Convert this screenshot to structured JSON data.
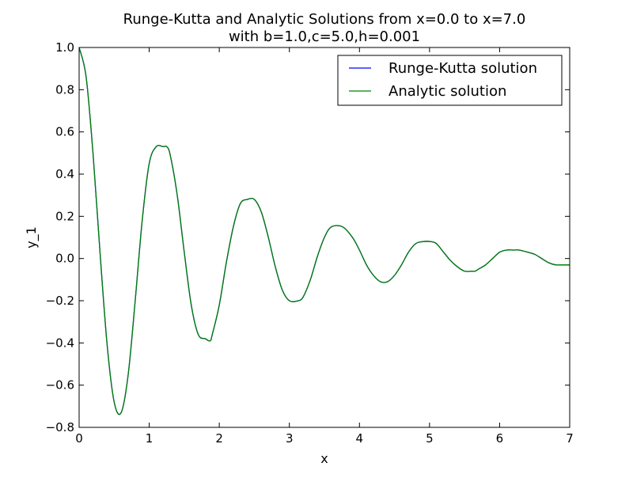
{
  "chart_data": {
    "type": "line",
    "title": "Runge-Kutta and Analytic Solutions from x=0.0 to x=7.0",
    "subtitle": "with b=1.0,c=5.0,h=0.001",
    "xlabel": "x",
    "ylabel": "y_1",
    "xlim": [
      0,
      7
    ],
    "ylim": [
      -0.8,
      1.0
    ],
    "xticks": [
      "0",
      "1",
      "2",
      "3",
      "4",
      "5",
      "6",
      "7"
    ],
    "yticks": [
      "−0.8",
      "−0.6",
      "−0.4",
      "−0.2",
      "0.0",
      "0.2",
      "0.4",
      "0.6",
      "0.8",
      "1.0"
    ],
    "xtick_values": [
      0,
      1,
      2,
      3,
      4,
      5,
      6,
      7
    ],
    "ytick_values": [
      -0.8,
      -0.6,
      -0.4,
      -0.2,
      0.0,
      0.2,
      0.4,
      0.6,
      0.8,
      1.0
    ],
    "grid": false,
    "legend_position": "top-right",
    "series": [
      {
        "name": "Runge-Kutta solution",
        "color": "#0000ff",
        "x": [
          0,
          0.1,
          0.2,
          0.3,
          0.4,
          0.5,
          0.6,
          0.7,
          0.8,
          0.9,
          1.0,
          1.1,
          1.2,
          1.25,
          1.3,
          1.4,
          1.5,
          1.6,
          1.7,
          1.8,
          1.87,
          1.9,
          2.0,
          2.1,
          2.2,
          2.3,
          2.4,
          2.5,
          2.6,
          2.7,
          2.8,
          2.9,
          3.0,
          3.13,
          3.2,
          3.3,
          3.4,
          3.5,
          3.6,
          3.76,
          3.9,
          4.0,
          4.1,
          4.2,
          4.3,
          4.4,
          4.5,
          4.6,
          4.7,
          4.8,
          4.9,
          5.02,
          5.1,
          5.2,
          5.3,
          5.4,
          5.5,
          5.6,
          5.65,
          5.7,
          5.8,
          5.9,
          6.0,
          6.1,
          6.2,
          6.28,
          6.4,
          6.5,
          6.6,
          6.7,
          6.8,
          6.9,
          7.0
        ],
        "y": [
          1.0,
          0.86,
          0.49,
          0.02,
          -0.41,
          -0.68,
          -0.73,
          -0.55,
          -0.2,
          0.18,
          0.45,
          0.53,
          0.53,
          0.53,
          0.49,
          0.3,
          0.03,
          -0.22,
          -0.36,
          -0.38,
          -0.39,
          -0.36,
          -0.22,
          -0.02,
          0.15,
          0.26,
          0.28,
          0.28,
          0.22,
          0.1,
          -0.04,
          -0.15,
          -0.2,
          -0.2,
          -0.18,
          -0.1,
          0.01,
          0.1,
          0.15,
          0.15,
          0.1,
          0.04,
          -0.03,
          -0.08,
          -0.11,
          -0.11,
          -0.08,
          -0.03,
          0.03,
          0.07,
          0.08,
          0.08,
          0.07,
          0.03,
          -0.01,
          -0.04,
          -0.06,
          -0.06,
          -0.06,
          -0.05,
          -0.03,
          0.0,
          0.03,
          0.04,
          0.04,
          0.04,
          0.03,
          0.02,
          0.0,
          -0.02,
          -0.03,
          -0.03,
          -0.03
        ]
      },
      {
        "name": "Analytic solution",
        "color": "#008000",
        "x": [
          0,
          0.1,
          0.2,
          0.3,
          0.4,
          0.5,
          0.6,
          0.7,
          0.8,
          0.9,
          1.0,
          1.1,
          1.2,
          1.25,
          1.3,
          1.4,
          1.5,
          1.6,
          1.7,
          1.8,
          1.87,
          1.9,
          2.0,
          2.1,
          2.2,
          2.3,
          2.4,
          2.5,
          2.6,
          2.7,
          2.8,
          2.9,
          3.0,
          3.13,
          3.2,
          3.3,
          3.4,
          3.5,
          3.6,
          3.76,
          3.9,
          4.0,
          4.1,
          4.2,
          4.3,
          4.4,
          4.5,
          4.6,
          4.7,
          4.8,
          4.9,
          5.02,
          5.1,
          5.2,
          5.3,
          5.4,
          5.5,
          5.6,
          5.65,
          5.7,
          5.8,
          5.9,
          6.0,
          6.1,
          6.2,
          6.28,
          6.4,
          6.5,
          6.6,
          6.7,
          6.8,
          6.9,
          7.0
        ],
        "y": [
          1.0,
          0.86,
          0.49,
          0.02,
          -0.41,
          -0.68,
          -0.73,
          -0.55,
          -0.2,
          0.18,
          0.45,
          0.53,
          0.53,
          0.53,
          0.49,
          0.3,
          0.03,
          -0.22,
          -0.36,
          -0.38,
          -0.39,
          -0.36,
          -0.22,
          -0.02,
          0.15,
          0.26,
          0.28,
          0.28,
          0.22,
          0.1,
          -0.04,
          -0.15,
          -0.2,
          -0.2,
          -0.18,
          -0.1,
          0.01,
          0.1,
          0.15,
          0.15,
          0.1,
          0.04,
          -0.03,
          -0.08,
          -0.11,
          -0.11,
          -0.08,
          -0.03,
          0.03,
          0.07,
          0.08,
          0.08,
          0.07,
          0.03,
          -0.01,
          -0.04,
          -0.06,
          -0.06,
          -0.06,
          -0.05,
          -0.03,
          0.0,
          0.03,
          0.04,
          0.04,
          0.04,
          0.03,
          0.02,
          0.0,
          -0.02,
          -0.03,
          -0.03,
          -0.03
        ]
      }
    ]
  }
}
